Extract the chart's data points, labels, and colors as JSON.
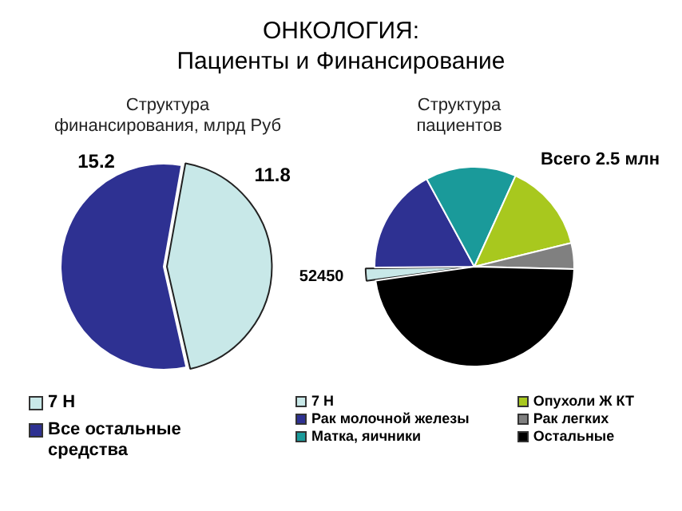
{
  "chart_data": [
    {
      "type": "pie",
      "title": "ОНКОЛОГИЯ:\nПациенты и Финансирование",
      "subtitle": "Структура\nфинансирования, млрд Руб",
      "categories": [
        "7 Н",
        "Все остальные средства"
      ],
      "values": [
        11.8,
        15.2
      ],
      "colors": [
        "#c8e8e8",
        "#2e3192"
      ],
      "data_labels": true,
      "legend": "bottom"
    },
    {
      "type": "pie",
      "subtitle": "Структура\nпациентов",
      "categories": [
        "7 Н",
        "Рак молочной железы",
        "Матка, яичники",
        "Опухоли Ж КТ",
        "Рак легких",
        "Остальные"
      ],
      "values": [
        52450,
        430000,
        367500,
        360000,
        105000,
        1185050
      ],
      "colors": [
        "#c8e8e8",
        "#2e3192",
        "#1a9a9a",
        "#a8c81e",
        "#808080",
        "#000000"
      ],
      "value_labels": [
        "52450",
        null,
        null,
        null,
        null,
        null
      ],
      "annotations": [
        "Всего 2.5 млн"
      ],
      "legend": "bottom"
    }
  ]
}
